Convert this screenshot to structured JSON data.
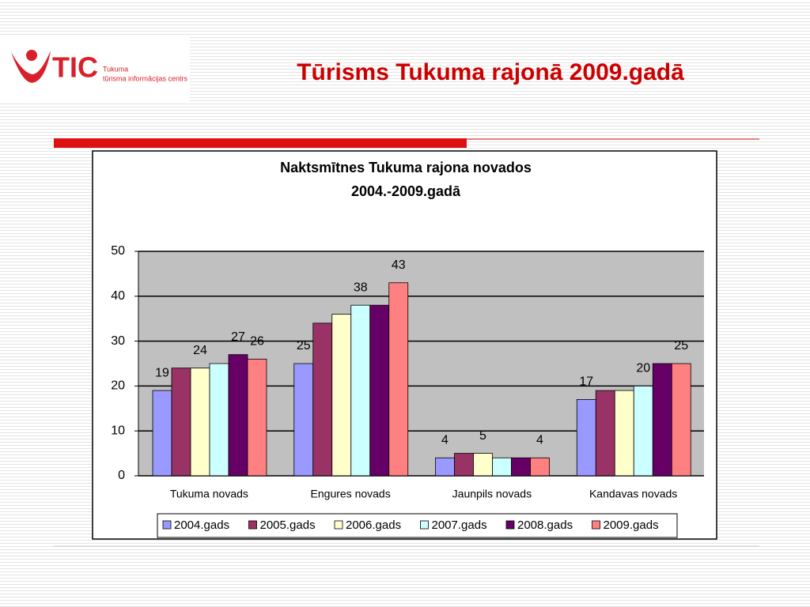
{
  "header": {
    "logo_text": "TIC",
    "logo_subtitle": [
      "Tukuma",
      "tūrisma informācijas centrs"
    ],
    "title": "Tūrisms Tukuma rajonā 2009.gadā"
  },
  "chart_data": {
    "type": "bar",
    "title": [
      "Naktsmītnes Tukuma rajona novados",
      "2004.-2009.gadā"
    ],
    "categories": [
      "Tukuma novads",
      "Engures novads",
      "Jaunpils novads",
      "Kandavas novads"
    ],
    "series": [
      {
        "name": "2004.gads",
        "color": "#9999ff",
        "values": [
          19,
          25,
          4,
          17
        ],
        "value_labels": [
          "19",
          "25",
          "4",
          "17"
        ]
      },
      {
        "name": "2005.gads",
        "color": "#993366",
        "values": [
          24,
          34,
          5,
          19
        ],
        "value_labels": [
          null,
          null,
          null,
          null
        ]
      },
      {
        "name": "2006.gads",
        "color": "#ffffcc",
        "values": [
          24,
          36,
          5,
          19
        ],
        "value_labels": [
          "24",
          null,
          "5",
          null
        ]
      },
      {
        "name": "2007.gads",
        "color": "#ccffff",
        "values": [
          25,
          38,
          4,
          20
        ],
        "value_labels": [
          null,
          "38",
          null,
          "20"
        ]
      },
      {
        "name": "2008.gads",
        "color": "#660066",
        "values": [
          27,
          38,
          4,
          25
        ],
        "value_labels": [
          "27",
          null,
          null,
          null
        ]
      },
      {
        "name": "2009.gads",
        "color": "#ff8080",
        "values": [
          26,
          43,
          4,
          25
        ],
        "value_labels": [
          "26",
          "43",
          "4",
          "25"
        ]
      }
    ],
    "ylim": [
      0,
      50
    ],
    "yticks": [
      0,
      10,
      20,
      30,
      40,
      50
    ],
    "grid": true,
    "legend": "bottom"
  }
}
